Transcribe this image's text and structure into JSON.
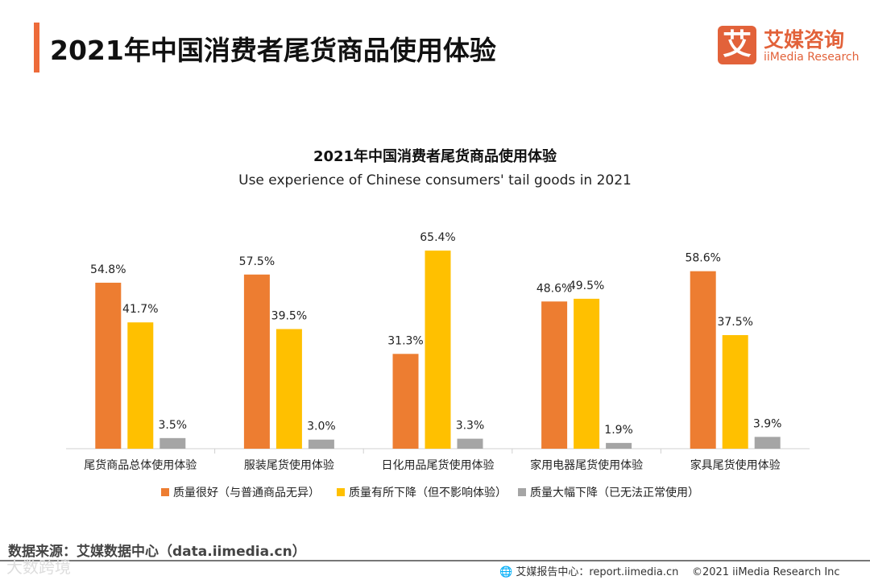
{
  "header": {
    "title": "2021年中国消费者尾货商品使用体验",
    "logo_mark": "艾",
    "logo_cn": "艾媒咨询",
    "logo_en": "iiMedia Research"
  },
  "chart_data": {
    "type": "bar",
    "title": "2021年中国消费者尾货商品使用体验",
    "subtitle": "Use experience of Chinese consumers' tail goods in 2021",
    "categories": [
      "尾货商品总体使用体验",
      "服装尾货使用体验",
      "日化用品尾货使用体验",
      "家用电器尾货使用体验",
      "家具尾货使用体验"
    ],
    "series": [
      {
        "name": "质量很好（与普通商品无异）",
        "color": "#ed7d31",
        "values": [
          54.8,
          57.5,
          31.3,
          48.6,
          58.6
        ]
      },
      {
        "name": "质量有所下降（但不影响体验）",
        "color": "#ffc000",
        "values": [
          41.7,
          39.5,
          65.4,
          49.5,
          37.5
        ]
      },
      {
        "name": "质量大幅下降（已无法正常使用）",
        "color": "#a5a5a5",
        "values": [
          3.5,
          3.0,
          3.3,
          1.9,
          3.9
        ]
      }
    ],
    "unit": "%",
    "ylim": [
      0,
      70
    ],
    "legend": "bottom",
    "grid": false
  },
  "footer": {
    "source": "数据来源：艾媒数据中心（data.iimedia.cn）",
    "watermark": "大数跨境",
    "report": "艾媒报告中心：report.iimedia.cn",
    "copyright": "©2021  iiMedia Research  Inc"
  }
}
